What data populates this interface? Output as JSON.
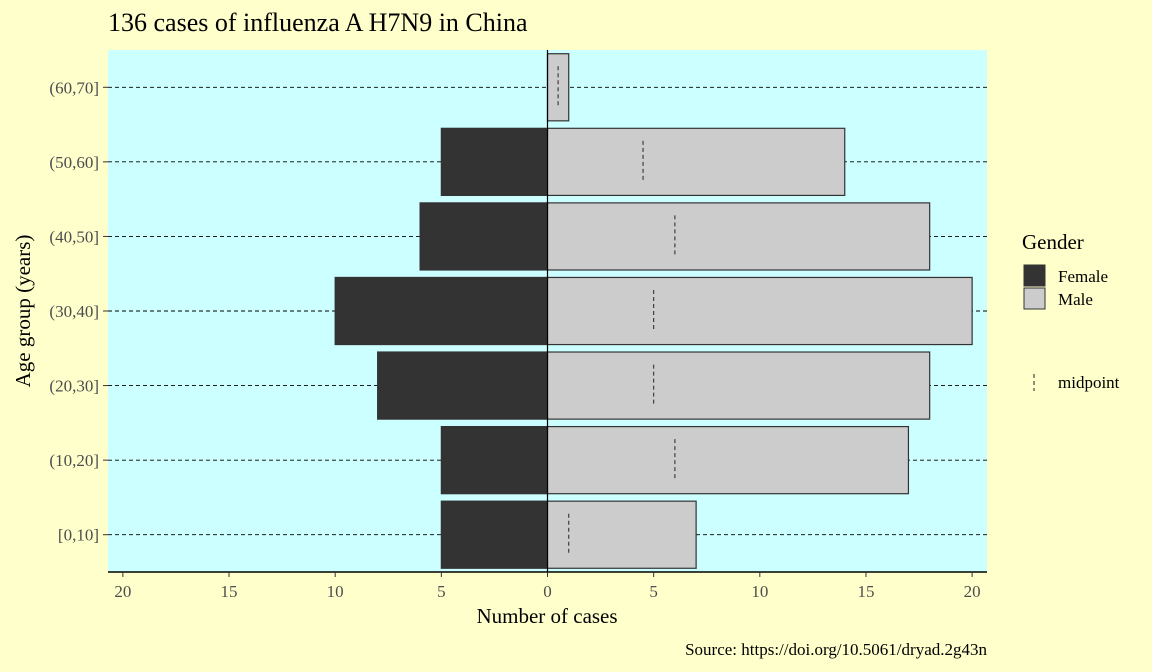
{
  "colors": {
    "page_background": "#ffffcc",
    "panel_background": "#ccffff",
    "female_fill": "#333333",
    "male_fill": "#cccccc",
    "bar_outline": "#333333",
    "gridline": "#000000",
    "midpoint": "#333333"
  },
  "chart_data": {
    "type": "bar",
    "orientation": "horizontal",
    "title": "136 cases of influenza A H7N9 in China",
    "xlabel": "Number of cases",
    "ylabel": "Age group (years)",
    "caption": "Source: https://doi.org/10.5061/dryad.2g43n",
    "categories": [
      "[0,10]",
      "(10,20]",
      "(20,30]",
      "(30,40]",
      "(40,50]",
      "(50,60]",
      "(60,70]"
    ],
    "series": [
      {
        "name": "Female",
        "direction": "left",
        "values": [
          5,
          5,
          8,
          10,
          6,
          5,
          0
        ]
      },
      {
        "name": "Male",
        "direction": "right",
        "values": [
          7,
          17,
          18,
          20,
          18,
          14,
          1
        ]
      }
    ],
    "midpoints": {
      "name": "midpoint",
      "values": [
        1,
        6,
        5,
        5,
        6,
        4.5,
        0.5
      ]
    },
    "x_ticks": [
      20,
      15,
      10,
      5,
      0,
      5,
      10,
      15,
      20
    ],
    "xlim": [
      -20.7,
      20.7
    ],
    "grid": "dashed horizontal lines at each age group",
    "legend": {
      "title": "Gender",
      "entries": [
        "Female",
        "Male"
      ],
      "extra_entry": "midpoint",
      "position": "right"
    }
  }
}
